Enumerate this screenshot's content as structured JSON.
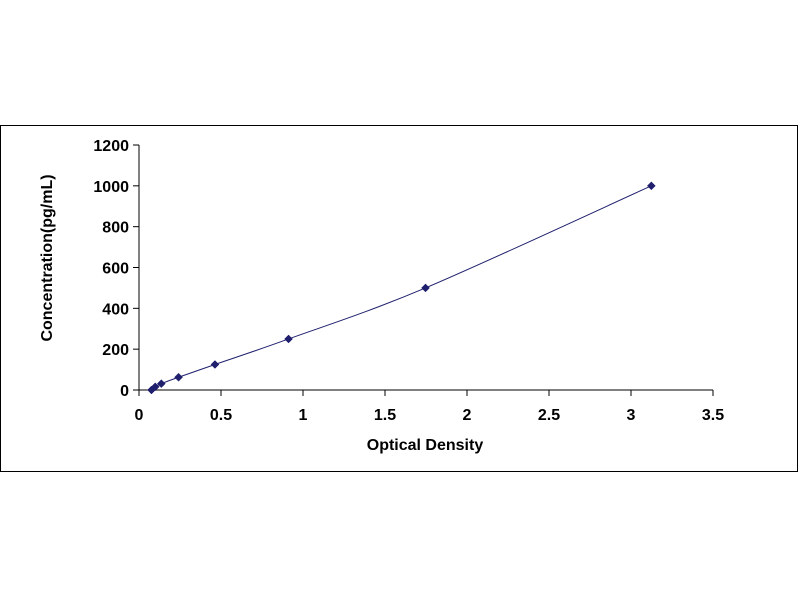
{
  "chart_data": {
    "type": "scatter",
    "title": "",
    "xlabel": "Optical Density",
    "ylabel": "Concentration(pg/mL)",
    "xlim": [
      0,
      3.5
    ],
    "ylim": [
      0,
      1200
    ],
    "x_ticks": [
      0,
      0.5,
      1,
      1.5,
      2,
      2.5,
      3,
      3.5
    ],
    "x_tick_labels": [
      "0",
      "0.5",
      "1",
      "1.5",
      "2",
      "2.5",
      "3",
      "3.5"
    ],
    "y_ticks": [
      0,
      200,
      400,
      600,
      800,
      1000,
      1200
    ],
    "y_tick_labels": [
      "0",
      "200",
      "400",
      "600",
      "800",
      "1000",
      "1200"
    ],
    "grid": false,
    "legend": "none",
    "trendline": true,
    "marker_color": "#1f1f6e",
    "line_color": "#1f1f6e",
    "series": [
      {
        "x": [
          0.076,
          0.099,
          0.136,
          0.241,
          0.463,
          0.912,
          1.747,
          3.124
        ],
        "y": [
          0,
          15.6,
          31.2,
          62.5,
          125,
          250,
          500,
          1000
        ]
      }
    ]
  }
}
